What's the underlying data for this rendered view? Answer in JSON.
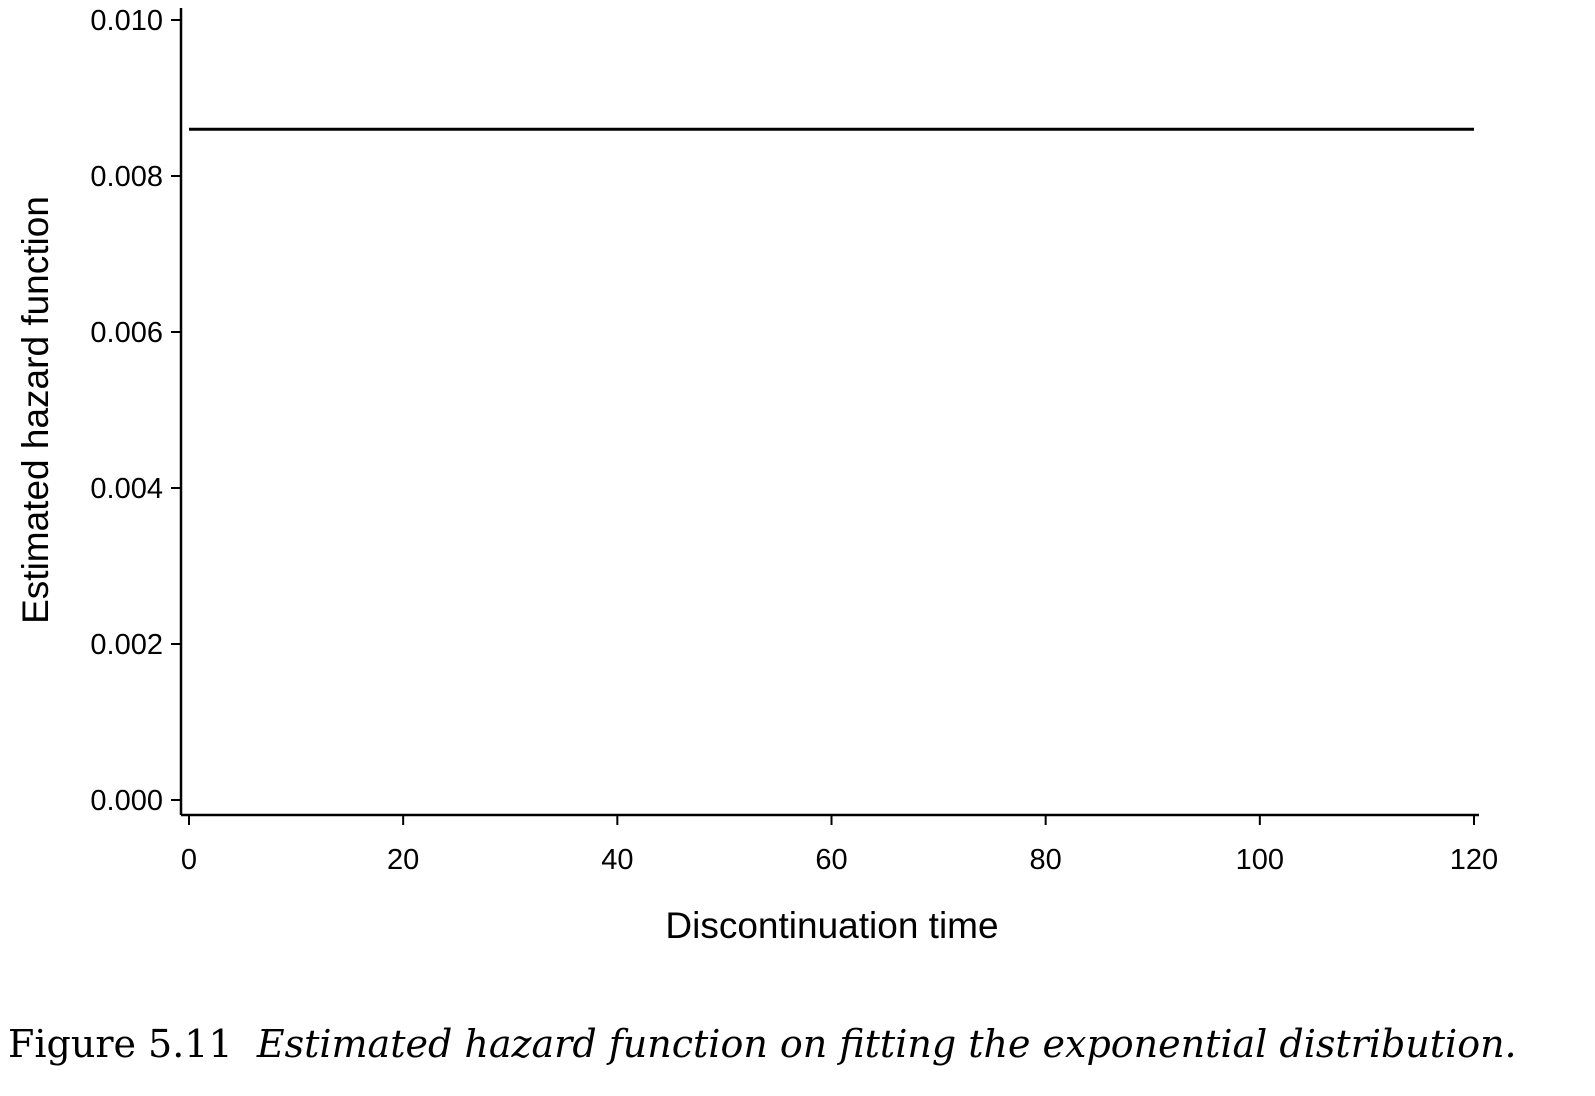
{
  "chart_data": {
    "type": "line",
    "xlabel": "Discontinuation time",
    "ylabel": "Estimated hazard function",
    "xlim": [
      0,
      120
    ],
    "ylim": [
      0,
      0.01
    ],
    "xticks": [
      0,
      20,
      40,
      60,
      80,
      100,
      120
    ],
    "yticks": [
      "0.000",
      "0.002",
      "0.004",
      "0.006",
      "0.008",
      "0.010"
    ],
    "grid": false,
    "series": [
      {
        "x": [
          0,
          120
        ],
        "y": [
          0.0086,
          0.0086
        ],
        "color": "#000000"
      }
    ]
  },
  "caption": {
    "label": "Figure 5.11",
    "text": "Estimated hazard function on fitting the exponential distribution."
  }
}
